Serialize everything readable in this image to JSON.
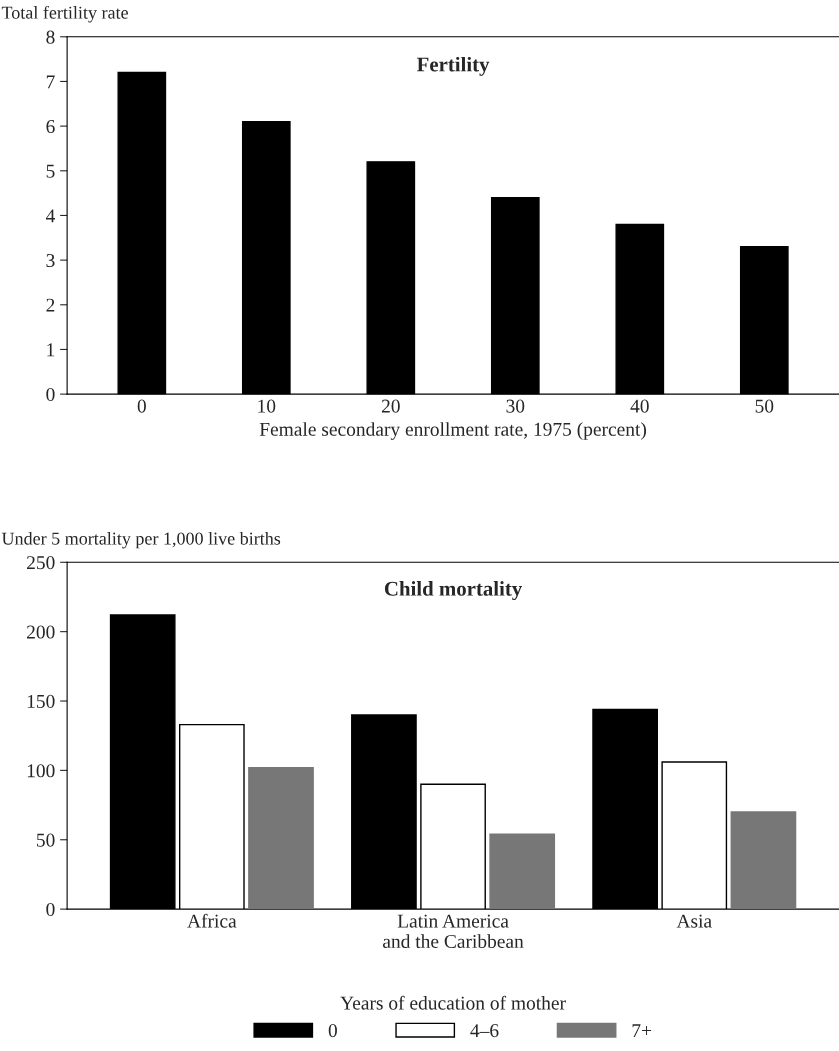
{
  "chart_data": [
    {
      "type": "bar",
      "title": "Fertility",
      "ylabel": "Total fertility rate",
      "xlabel": "Female secondary enrollment rate, 1975 (percent)",
      "categories": [
        "0",
        "10",
        "20",
        "30",
        "40",
        "50"
      ],
      "series": [
        {
          "color": "#000000",
          "values": [
            7.2,
            6.1,
            5.2,
            4.4,
            3.8,
            3.3
          ]
        }
      ],
      "ylim": [
        0,
        8
      ],
      "yticks": [
        0,
        1,
        2,
        3,
        4,
        5,
        6,
        7,
        8
      ],
      "grid": false,
      "legend": false
    },
    {
      "type": "bar",
      "title": "Child mortality",
      "ylabel": "Under 5 mortality per 1,000 live births",
      "legend_title": "Years of education of mother",
      "categories": [
        "Africa",
        "Latin America\nand the Caribbean",
        "Asia"
      ],
      "series": [
        {
          "name": "0",
          "color": "#000000",
          "values": [
            212,
            140,
            144
          ]
        },
        {
          "name": "4–6",
          "color": "#ffffff",
          "values": [
            133,
            90,
            106
          ]
        },
        {
          "name": "7+",
          "color": "#777777",
          "values": [
            102,
            54,
            70
          ]
        }
      ],
      "ylim": [
        0,
        250
      ],
      "yticks": [
        0,
        50,
        100,
        150,
        200,
        250
      ],
      "grid": false,
      "legend": "bottom"
    }
  ]
}
